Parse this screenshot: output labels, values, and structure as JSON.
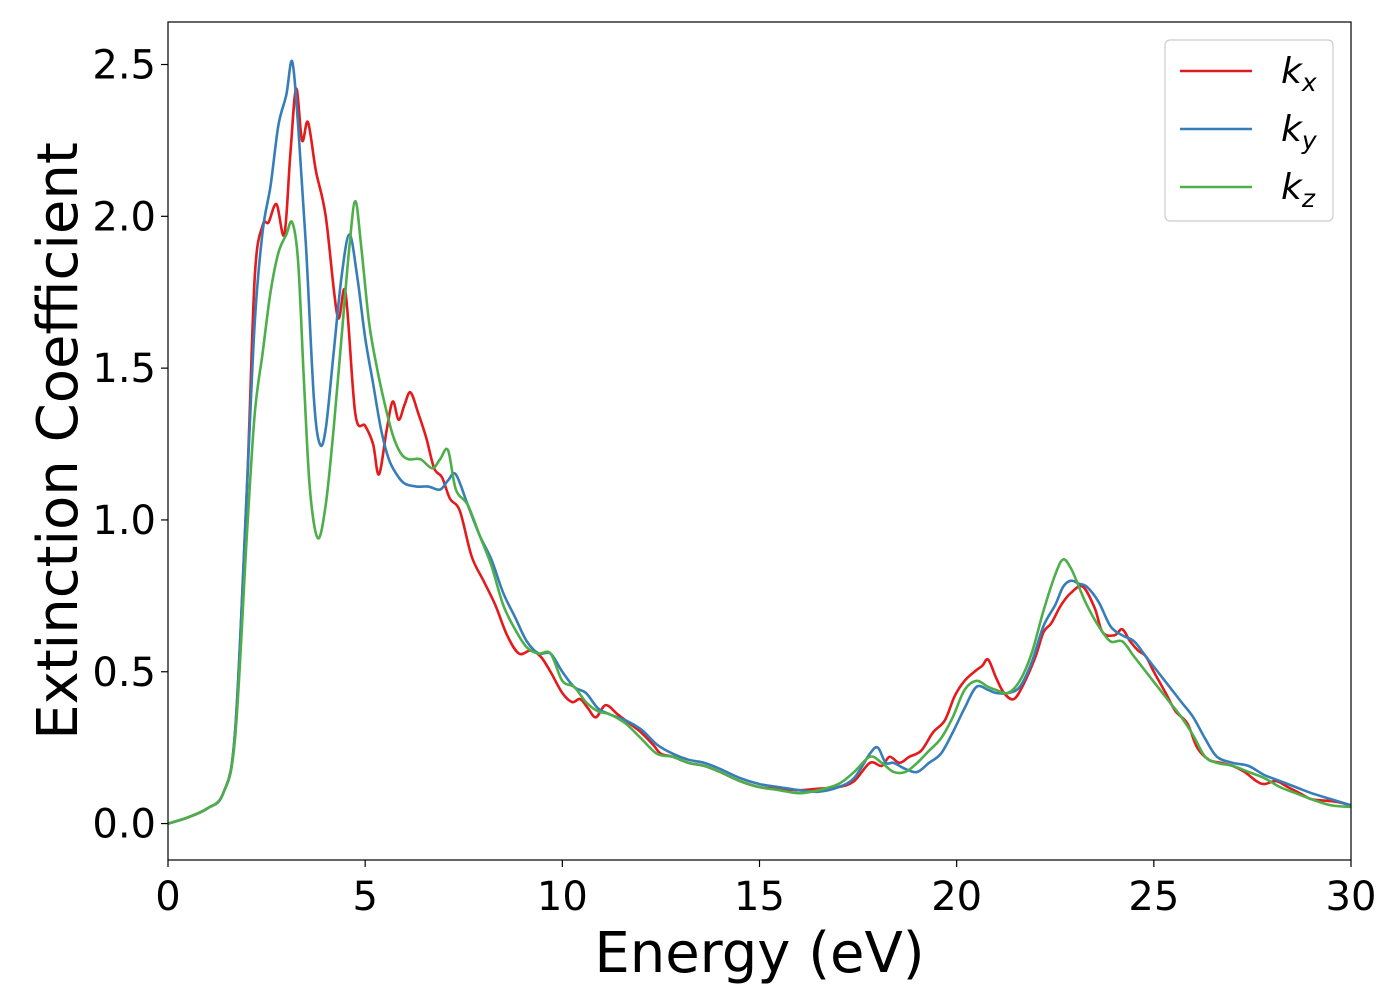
{
  "chart_data": {
    "type": "line",
    "title": "",
    "xlabel": "Energy (eV)",
    "ylabel": "Extinction Coefficient",
    "xlim": [
      0,
      30
    ],
    "ylim": [
      -0.12,
      2.64
    ],
    "xticks": [
      0,
      5,
      10,
      15,
      20,
      25,
      30
    ],
    "xtick_labels": [
      "0",
      "5",
      "10",
      "15",
      "20",
      "25",
      "30"
    ],
    "yticks": [
      0.0,
      0.5,
      1.0,
      1.5,
      2.0,
      2.5
    ],
    "ytick_labels": [
      "0.0",
      "0.5",
      "1.0",
      "1.5",
      "2.0",
      "2.5"
    ],
    "grid": false,
    "legend_position": "top-right",
    "series": [
      {
        "name": "k_x",
        "label_main": "k",
        "label_sub": "x",
        "color": "#e41a1c",
        "x": [
          0,
          0.5,
          1.0,
          1.4,
          1.7,
          2.0,
          2.2,
          2.4,
          2.55,
          2.75,
          2.95,
          3.1,
          3.25,
          3.4,
          3.55,
          3.75,
          4.0,
          4.3,
          4.5,
          4.75,
          5.0,
          5.2,
          5.35,
          5.55,
          5.7,
          5.85,
          6.0,
          6.15,
          6.35,
          6.55,
          6.75,
          6.95,
          7.15,
          7.4,
          7.7,
          8.0,
          8.3,
          8.6,
          8.9,
          9.2,
          9.45,
          9.7,
          10.0,
          10.25,
          10.45,
          10.65,
          10.85,
          11.1,
          11.4,
          11.7,
          12.0,
          12.3,
          12.5,
          12.8,
          13.2,
          13.6,
          14.0,
          14.5,
          15.0,
          15.5,
          16.0,
          16.5,
          17.0,
          17.4,
          17.8,
          18.1,
          18.3,
          18.55,
          18.8,
          19.1,
          19.4,
          19.7,
          19.95,
          20.2,
          20.45,
          20.65,
          20.8,
          21.0,
          21.2,
          21.45,
          21.7,
          22.0,
          22.2,
          22.4,
          22.65,
          22.9,
          23.2,
          23.5,
          23.7,
          24.0,
          24.2,
          24.4,
          24.6,
          24.8,
          25.0,
          25.3,
          25.55,
          25.85,
          26.1,
          26.4,
          26.7,
          27.0,
          27.3,
          27.6,
          27.8,
          28.1,
          28.4,
          28.7,
          29.0,
          29.4,
          29.7,
          30.0
        ],
        "y": [
          0.0,
          0.02,
          0.05,
          0.1,
          0.3,
          1.1,
          1.8,
          1.97,
          1.98,
          2.04,
          1.94,
          2.2,
          2.42,
          2.25,
          2.31,
          2.15,
          2.0,
          1.67,
          1.75,
          1.35,
          1.31,
          1.25,
          1.15,
          1.3,
          1.39,
          1.33,
          1.38,
          1.42,
          1.35,
          1.27,
          1.17,
          1.14,
          1.07,
          1.03,
          0.88,
          0.8,
          0.72,
          0.62,
          0.56,
          0.57,
          0.55,
          0.5,
          0.43,
          0.4,
          0.41,
          0.38,
          0.35,
          0.39,
          0.36,
          0.33,
          0.3,
          0.26,
          0.23,
          0.22,
          0.2,
          0.19,
          0.17,
          0.14,
          0.12,
          0.115,
          0.11,
          0.115,
          0.12,
          0.14,
          0.2,
          0.19,
          0.22,
          0.2,
          0.22,
          0.24,
          0.3,
          0.34,
          0.42,
          0.47,
          0.5,
          0.52,
          0.54,
          0.48,
          0.43,
          0.41,
          0.46,
          0.55,
          0.63,
          0.66,
          0.72,
          0.76,
          0.78,
          0.71,
          0.63,
          0.62,
          0.64,
          0.6,
          0.57,
          0.55,
          0.5,
          0.43,
          0.37,
          0.33,
          0.25,
          0.21,
          0.2,
          0.19,
          0.17,
          0.14,
          0.13,
          0.14,
          0.12,
          0.1,
          0.08,
          0.075,
          0.07,
          0.06
        ]
      },
      {
        "name": "k_y",
        "label_main": "k",
        "label_sub": "y",
        "color": "#377eb8",
        "x": [
          0,
          0.5,
          1.0,
          1.4,
          1.7,
          2.0,
          2.2,
          2.4,
          2.6,
          2.8,
          3.0,
          3.15,
          3.3,
          3.5,
          3.7,
          3.85,
          4.0,
          4.2,
          4.4,
          4.6,
          4.8,
          5.0,
          5.2,
          5.4,
          5.6,
          5.8,
          6.0,
          6.3,
          6.6,
          6.9,
          7.1,
          7.3,
          7.6,
          7.9,
          8.2,
          8.5,
          8.8,
          9.1,
          9.4,
          9.7,
          10.0,
          10.3,
          10.6,
          10.9,
          11.2,
          11.6,
          12.0,
          12.4,
          12.8,
          13.2,
          13.6,
          14.0,
          14.5,
          15.0,
          15.5,
          16.0,
          16.5,
          17.0,
          17.4,
          17.8,
          18.0,
          18.2,
          18.4,
          18.7,
          19.0,
          19.3,
          19.6,
          19.9,
          20.2,
          20.5,
          20.8,
          21.0,
          21.3,
          21.6,
          21.9,
          22.2,
          22.5,
          22.7,
          22.9,
          23.1,
          23.3,
          23.6,
          23.9,
          24.2,
          24.5,
          24.8,
          25.1,
          25.4,
          25.7,
          26.0,
          26.3,
          26.6,
          27.0,
          27.4,
          27.8,
          28.2,
          28.6,
          29.0,
          29.5,
          30.0
        ],
        "y": [
          0.0,
          0.02,
          0.05,
          0.1,
          0.3,
          1.1,
          1.65,
          1.95,
          2.1,
          2.3,
          2.4,
          2.51,
          2.3,
          1.9,
          1.4,
          1.25,
          1.3,
          1.55,
          1.8,
          1.94,
          1.8,
          1.6,
          1.45,
          1.3,
          1.2,
          1.15,
          1.12,
          1.11,
          1.11,
          1.1,
          1.13,
          1.15,
          1.05,
          0.95,
          0.87,
          0.76,
          0.68,
          0.6,
          0.56,
          0.56,
          0.5,
          0.45,
          0.43,
          0.38,
          0.36,
          0.34,
          0.31,
          0.26,
          0.23,
          0.21,
          0.2,
          0.18,
          0.15,
          0.13,
          0.12,
          0.11,
          0.105,
          0.12,
          0.15,
          0.23,
          0.25,
          0.2,
          0.2,
          0.18,
          0.17,
          0.2,
          0.23,
          0.3,
          0.38,
          0.45,
          0.44,
          0.43,
          0.43,
          0.45,
          0.53,
          0.65,
          0.72,
          0.78,
          0.8,
          0.79,
          0.78,
          0.73,
          0.65,
          0.62,
          0.6,
          0.55,
          0.5,
          0.45,
          0.4,
          0.35,
          0.28,
          0.22,
          0.2,
          0.19,
          0.16,
          0.14,
          0.12,
          0.1,
          0.08,
          0.06
        ]
      },
      {
        "name": "k_z",
        "label_main": "k",
        "label_sub": "z",
        "color": "#4daf4a",
        "x": [
          0,
          0.5,
          1.0,
          1.4,
          1.7,
          2.0,
          2.2,
          2.4,
          2.6,
          2.8,
          3.0,
          3.15,
          3.3,
          3.45,
          3.6,
          3.8,
          4.0,
          4.2,
          4.4,
          4.6,
          4.75,
          4.9,
          5.1,
          5.3,
          5.5,
          5.7,
          5.9,
          6.1,
          6.4,
          6.7,
          6.9,
          7.1,
          7.3,
          7.6,
          7.9,
          8.2,
          8.5,
          8.8,
          9.1,
          9.4,
          9.7,
          10.0,
          10.3,
          10.6,
          10.9,
          11.2,
          11.6,
          12.0,
          12.4,
          12.8,
          13.2,
          13.6,
          14.0,
          14.5,
          15.0,
          15.5,
          16.0,
          16.5,
          17.0,
          17.4,
          17.8,
          18.1,
          18.4,
          18.7,
          19.0,
          19.3,
          19.6,
          19.9,
          20.2,
          20.5,
          20.8,
          21.0,
          21.3,
          21.6,
          21.9,
          22.2,
          22.5,
          22.7,
          22.9,
          23.1,
          23.3,
          23.6,
          23.9,
          24.2,
          24.5,
          24.8,
          25.1,
          25.4,
          25.7,
          26.0,
          26.3,
          26.6,
          27.0,
          27.4,
          27.8,
          28.2,
          28.6,
          29.0,
          29.5,
          30.0
        ],
        "y": [
          0.0,
          0.02,
          0.05,
          0.1,
          0.28,
          0.95,
          1.35,
          1.55,
          1.75,
          1.88,
          1.94,
          1.98,
          1.85,
          1.45,
          1.1,
          0.94,
          1.05,
          1.3,
          1.6,
          1.9,
          2.05,
          1.9,
          1.65,
          1.5,
          1.38,
          1.28,
          1.22,
          1.2,
          1.2,
          1.17,
          1.2,
          1.23,
          1.1,
          1.05,
          0.95,
          0.85,
          0.72,
          0.64,
          0.58,
          0.56,
          0.56,
          0.47,
          0.45,
          0.4,
          0.37,
          0.36,
          0.33,
          0.28,
          0.23,
          0.22,
          0.2,
          0.19,
          0.17,
          0.14,
          0.12,
          0.11,
          0.1,
          0.11,
          0.13,
          0.17,
          0.22,
          0.2,
          0.17,
          0.17,
          0.2,
          0.24,
          0.28,
          0.35,
          0.44,
          0.47,
          0.45,
          0.44,
          0.43,
          0.47,
          0.56,
          0.7,
          0.82,
          0.87,
          0.84,
          0.78,
          0.72,
          0.65,
          0.6,
          0.6,
          0.55,
          0.5,
          0.45,
          0.4,
          0.35,
          0.29,
          0.22,
          0.2,
          0.19,
          0.17,
          0.15,
          0.12,
          0.1,
          0.08,
          0.06,
          0.055
        ]
      }
    ]
  }
}
